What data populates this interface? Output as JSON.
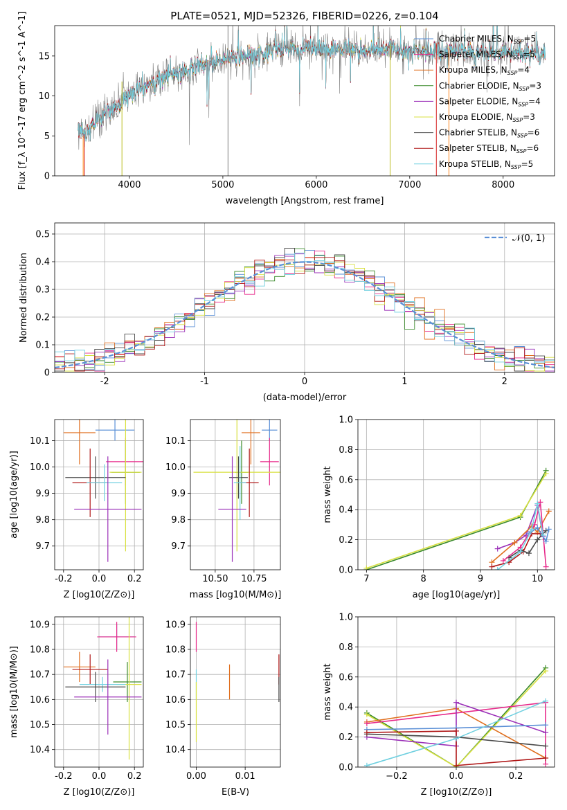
{
  "chart_data": [
    {
      "id": "spectrum",
      "type": "line",
      "title": "PLATE=0521, MJD=52326, FIBERID=0226, z=0.104",
      "xlabel": "wavelength [Angstrom, rest frame]",
      "ylabel": "Flux [f_λ 10^-17 erg cm^-2 s^-1 A^-1]",
      "xlim": [
        3200,
        8550
      ],
      "ylim": [
        0,
        18.8
      ],
      "xticks": [
        4000,
        5000,
        6000,
        7000,
        8000
      ],
      "yticks": [
        0,
        5,
        10,
        15
      ],
      "grid": false,
      "legend_position": "right",
      "continuum": {
        "x": [
          3450,
          3550,
          3650,
          3750,
          3850,
          3950,
          4050,
          4150,
          4300,
          4500,
          4700,
          4900,
          5100,
          5300,
          5500,
          5800,
          6100,
          6400,
          6700,
          7000,
          7300,
          7600,
          7900,
          8200,
          8450
        ],
        "y": [
          5.2,
          5.6,
          6.8,
          8.0,
          8.8,
          9.6,
          10.5,
          11.2,
          12.0,
          12.8,
          13.6,
          14.2,
          14.8,
          15.2,
          15.6,
          16.0,
          15.9,
          15.8,
          15.9,
          15.8,
          15.5,
          15.6,
          15.5,
          15.4,
          15.3
        ]
      },
      "spikes": [
        {
          "x": 3920,
          "y0": 0,
          "y1": 11.8,
          "color": "#bcbd22"
        },
        {
          "x": 5055,
          "y0": 0,
          "y1": 18.8,
          "color": "#7f7f7f"
        },
        {
          "x": 6790,
          "y0": 0,
          "y1": 16.5,
          "color": "#bcbd22"
        },
        {
          "x": 7285,
          "y0": 0,
          "y1": 16.6,
          "color": "#d62728"
        },
        {
          "x": 7420,
          "y0": 0,
          "y1": 16.4,
          "color": "#ff7f0e"
        },
        {
          "x": 3505,
          "y0": 0,
          "y1": 5.0,
          "color": "#ff7f0e"
        },
        {
          "x": 3520,
          "y0": 0,
          "y1": 5.2,
          "color": "#d62728"
        }
      ],
      "series": [
        {
          "name": "Chabrier MILES, N_SSP=5",
          "color": "#5a8fd6"
        },
        {
          "name": "Salpeter MILES, N_SSP=5",
          "color": "#e7298a"
        },
        {
          "name": "Kroupa MILES, N_SSP=4",
          "color": "#e07020"
        },
        {
          "name": "Chabrier ELODIE, N_SSP=3",
          "color": "#3a8a2a"
        },
        {
          "name": "Salpeter ELODIE, N_SSP=4",
          "color": "#9b30b8"
        },
        {
          "name": "Kroupa ELODIE, N_SSP=3",
          "color": "#d8e040"
        },
        {
          "name": "Chabrier STELIB, N_SSP=6",
          "color": "#4a4a4a"
        },
        {
          "name": "Salpeter STELIB, N_SSP=6",
          "color": "#b01818"
        },
        {
          "name": "Kroupa STELIB, N_SSP=5",
          "color": "#70d0e0"
        }
      ]
    },
    {
      "id": "residuals",
      "type": "line",
      "xlabel": "(data-model)/error",
      "ylabel": "Normed distribution",
      "xlim": [
        -2.5,
        2.5
      ],
      "ylim": [
        0,
        0.54
      ],
      "xticks": [
        -2,
        -1,
        0,
        1,
        2
      ],
      "yticks": [
        0.0,
        0.1,
        0.2,
        0.3,
        0.4,
        0.5
      ],
      "grid": true,
      "legend_position": "top-right",
      "gaussian": {
        "name": "𝒩(0, 1)",
        "mu": 0,
        "sigma": 1,
        "color": "#5a8fd6"
      },
      "bin_width": 0.1,
      "series_colors": [
        "#5a8fd6",
        "#e7298a",
        "#e07020",
        "#3a8a2a",
        "#9b30b8",
        "#d8e040",
        "#4a4a4a",
        "#b01818",
        "#70d0e0"
      ]
    },
    {
      "id": "age-vs-z",
      "type": "scatter",
      "xlabel": "Z [log10(Z/Z⊙)]",
      "ylabel": "age  [log10(age/yr)]",
      "xlim": [
        -0.25,
        0.25
      ],
      "ylim": [
        9.61,
        10.18
      ],
      "xticks": [
        "-0.2",
        "0.0",
        "0.2"
      ],
      "yticks": [
        "9.7",
        "9.8",
        "9.9",
        "10.0",
        "10.1"
      ],
      "grid": true,
      "points": [
        {
          "x": 0.09,
          "y": 10.14,
          "xerr": 0.11,
          "yerr": 0.04,
          "color": "#5a8fd6"
        },
        {
          "x": -0.11,
          "y": 10.13,
          "xerr": 0.09,
          "yerr": 0.12,
          "color": "#e07020"
        },
        {
          "x": 0.15,
          "y": 10.02,
          "xerr": 0.11,
          "yerr": 0.09,
          "color": "#e7298a"
        },
        {
          "x": 0.15,
          "y": 9.98,
          "xerr": 0.08,
          "yerr": 0.12,
          "color": "#3a8a2a"
        },
        {
          "x": 0.15,
          "y": 9.98,
          "xerr": 0.09,
          "yerr": 0.3,
          "color": "#d8e040"
        },
        {
          "x": -0.02,
          "y": 9.96,
          "xerr": 0.17,
          "yerr": 0.08,
          "color": "#4a4a4a"
        },
        {
          "x": -0.05,
          "y": 9.94,
          "xerr": 0.1,
          "yerr": 0.13,
          "color": "#b01818"
        },
        {
          "x": 0.03,
          "y": 9.94,
          "xerr": 0.1,
          "yerr": 0.07,
          "color": "#70d0e0"
        },
        {
          "x": 0.05,
          "y": 9.84,
          "xerr": 0.19,
          "yerr": 0.2,
          "color": "#9b30b8"
        }
      ]
    },
    {
      "id": "age-vs-mass",
      "type": "scatter",
      "xlabel": "mass [log10(M/M⊙)]",
      "xlim": [
        10.34,
        10.92
      ],
      "ylim": [
        9.61,
        10.18
      ],
      "xticks": [
        "10.50",
        "10.75"
      ],
      "yticks": [
        "9.7",
        "9.8",
        "9.9",
        "10.0",
        "10.1"
      ],
      "grid": true,
      "points": [
        {
          "x": 10.85,
          "y": 10.14,
          "xerr": 0.05,
          "yerr": 0.04,
          "color": "#5a8fd6"
        },
        {
          "x": 10.73,
          "y": 10.13,
          "xerr": 0.06,
          "yerr": 0.12,
          "color": "#e07020"
        },
        {
          "x": 10.85,
          "y": 10.02,
          "xerr": 0.06,
          "yerr": 0.09,
          "color": "#e7298a"
        },
        {
          "x": 10.67,
          "y": 9.98,
          "xerr": 0.04,
          "yerr": 0.12,
          "color": "#3a8a2a"
        },
        {
          "x": 10.64,
          "y": 9.98,
          "xerr": 0.28,
          "yerr": 0.3,
          "color": "#d8e040"
        },
        {
          "x": 10.65,
          "y": 9.96,
          "xerr": 0.06,
          "yerr": 0.08,
          "color": "#4a4a4a"
        },
        {
          "x": 10.72,
          "y": 9.94,
          "xerr": 0.06,
          "yerr": 0.13,
          "color": "#b01818"
        },
        {
          "x": 10.66,
          "y": 9.94,
          "xerr": 0.04,
          "yerr": 0.14,
          "color": "#70d0e0"
        },
        {
          "x": 10.61,
          "y": 9.84,
          "xerr": 0.09,
          "yerr": 0.2,
          "color": "#9b30b8"
        }
      ]
    },
    {
      "id": "mass-weight-vs-age",
      "type": "line",
      "xlabel": "age  [log10(age/yr)]",
      "ylabel": "mass weight",
      "xlim": [
        6.85,
        10.3
      ],
      "ylim": [
        0,
        1.0
      ],
      "xticks": [
        "7",
        "8",
        "9",
        "10"
      ],
      "yticks": [
        "0.0",
        "0.2",
        "0.4",
        "0.6",
        "0.8",
        "1.0"
      ],
      "grid": true,
      "series": [
        {
          "color": "#3a8a2a",
          "x": [
            7.0,
            9.7,
            10.15
          ],
          "y": [
            0.0,
            0.35,
            0.66
          ]
        },
        {
          "color": "#d8e040",
          "x": [
            7.0,
            9.7,
            10.15
          ],
          "y": [
            0.01,
            0.36,
            0.64
          ]
        },
        {
          "color": "#9b30b8",
          "x": [
            9.3,
            9.6,
            9.8,
            10.0,
            10.1
          ],
          "y": [
            0.14,
            0.18,
            0.23,
            0.43,
            0.22
          ]
        },
        {
          "color": "#e07020",
          "x": [
            9.2,
            9.6,
            9.9,
            10.0,
            10.2
          ],
          "y": [
            0.05,
            0.18,
            0.29,
            0.25,
            0.39
          ]
        },
        {
          "color": "#b01818",
          "x": [
            9.2,
            9.5,
            9.75,
            9.9,
            10.05
          ],
          "y": [
            0.02,
            0.05,
            0.12,
            0.24,
            0.24
          ]
        },
        {
          "color": "#4a4a4a",
          "x": [
            9.5,
            9.7,
            9.85,
            10.0,
            10.15
          ],
          "y": [
            0.08,
            0.13,
            0.11,
            0.2,
            0.26
          ]
        },
        {
          "color": "#e7298a",
          "x": [
            9.4,
            9.7,
            9.95,
            10.05,
            10.15
          ],
          "y": [
            0.06,
            0.15,
            0.3,
            0.45,
            0.02
          ]
        },
        {
          "color": "#5a8fd6",
          "x": [
            9.85,
            10.0,
            10.15,
            10.2
          ],
          "y": [
            0.24,
            0.28,
            0.19,
            0.27
          ]
        },
        {
          "color": "#70d0e0",
          "x": [
            9.3,
            9.7,
            9.9,
            10.0,
            10.1
          ],
          "y": [
            0.0,
            0.12,
            0.27,
            0.44,
            0.23
          ]
        }
      ]
    },
    {
      "id": "mass-vs-z",
      "type": "scatter",
      "xlabel": "Z [log10(Z/Z⊙)]",
      "ylabel": "mass [log10(M/M⊙)]",
      "xlim": [
        -0.25,
        0.25
      ],
      "ylim": [
        10.33,
        10.93
      ],
      "xticks": [
        "-0.2",
        "0.0",
        "0.2"
      ],
      "yticks": [
        "10.4",
        "10.5",
        "10.6",
        "10.7",
        "10.8",
        "10.9"
      ],
      "grid": true,
      "points": [
        {
          "x": 0.1,
          "y": 10.85,
          "xerr": 0.1,
          "yerr": 0.05,
          "color": "#5a8fd6"
        },
        {
          "x": 0.1,
          "y": 10.85,
          "xerr": 0.11,
          "yerr": 0.06,
          "color": "#e7298a"
        },
        {
          "x": -0.11,
          "y": 10.73,
          "xerr": 0.09,
          "yerr": 0.06,
          "color": "#e07020"
        },
        {
          "x": -0.05,
          "y": 10.72,
          "xerr": 0.1,
          "yerr": 0.06,
          "color": "#b01818"
        },
        {
          "x": 0.16,
          "y": 10.67,
          "xerr": 0.08,
          "yerr": 0.08,
          "color": "#3a8a2a"
        },
        {
          "x": 0.17,
          "y": 10.66,
          "xerr": 0.07,
          "yerr": 0.3,
          "color": "#d8e040"
        },
        {
          "x": 0.02,
          "y": 10.66,
          "xerr": 0.13,
          "yerr": 0.03,
          "color": "#70d0e0"
        },
        {
          "x": -0.02,
          "y": 10.65,
          "xerr": 0.17,
          "yerr": 0.06,
          "color": "#4a4a4a"
        },
        {
          "x": 0.05,
          "y": 10.61,
          "xerr": 0.19,
          "yerr": 0.15,
          "color": "#9b30b8"
        }
      ]
    },
    {
      "id": "mass-vs-ebv",
      "type": "scatter",
      "xlabel": "E(B-V)",
      "xlim": [
        -0.0012,
        0.0172
      ],
      "ylim": [
        10.33,
        10.93
      ],
      "xticks": [
        "0.00",
        "0.01"
      ],
      "yticks": [
        "10.4",
        "10.5",
        "10.6",
        "10.7",
        "10.8",
        "10.9"
      ],
      "grid": true,
      "points": [
        {
          "x": 0.0,
          "y": 10.85,
          "xerr": 0,
          "yerr": 0.06,
          "color": "#e7298a"
        },
        {
          "x": 0.0,
          "y": 10.66,
          "xerr": 0,
          "yerr": 0.06,
          "color": "#70d0e0"
        },
        {
          "x": 0.0,
          "y": 10.55,
          "xerr": 0,
          "yerr": 0.12,
          "color": "#d8e040"
        },
        {
          "x": 0.0068,
          "y": 10.67,
          "xerr": 0,
          "yerr": 0.07,
          "color": "#e07020"
        },
        {
          "x": 0.0169,
          "y": 10.72,
          "xerr": 0,
          "yerr": 0.06,
          "color": "#b01818"
        },
        {
          "x": 0.0169,
          "y": 10.64,
          "xerr": 0,
          "yerr": 0.05,
          "color": "#4a4a4a"
        }
      ]
    },
    {
      "id": "mass-weight-vs-z",
      "type": "line",
      "xlabel": "Z [log10(Z/Z⊙)]",
      "ylabel": "mass weight",
      "xlim": [
        -0.33,
        0.33
      ],
      "ylim": [
        0,
        1.0
      ],
      "xticks": [
        "−0.2",
        "0.0",
        "0.2"
      ],
      "yticks": [
        "0.0",
        "0.2",
        "0.4",
        "0.6",
        "0.8",
        "1.0"
      ],
      "grid": true,
      "series": [
        {
          "color": "#3a8a2a",
          "x": [
            -0.3,
            0.0,
            0.3
          ],
          "y": [
            0.36,
            0.0,
            0.66
          ]
        },
        {
          "color": "#d8e040",
          "x": [
            -0.3,
            0.0,
            0.3
          ],
          "y": [
            0.35,
            0.0,
            0.64
          ]
        },
        {
          "color": "#e07020",
          "x": [
            -0.3,
            0.0,
            0.3
          ],
          "y": [
            0.3,
            0.39,
            0.06
          ]
        },
        {
          "color": "#e7298a",
          "x": [
            -0.3,
            0.3,
            0.3
          ],
          "y": [
            0.29,
            0.43,
            0.02
          ]
        },
        {
          "color": "#9b30b8",
          "x": [
            -0.3,
            0.0,
            0.0,
            0.3
          ],
          "y": [
            0.2,
            0.14,
            0.43,
            0.23
          ]
        },
        {
          "color": "#5a8fd6",
          "x": [
            -0.3,
            0.0,
            0.3
          ],
          "y": [
            0.25,
            0.26,
            0.28
          ]
        },
        {
          "color": "#4a4a4a",
          "x": [
            -0.3,
            0.0,
            0.3
          ],
          "y": [
            0.22,
            0.2,
            0.14
          ]
        },
        {
          "color": "#b01818",
          "x": [
            -0.3,
            0.0,
            0.0,
            0.3
          ],
          "y": [
            0.23,
            0.24,
            0.01,
            0.06
          ]
        },
        {
          "color": "#70d0e0",
          "x": [
            -0.3,
            0.0,
            0.3
          ],
          "y": [
            0.01,
            0.19,
            0.44
          ]
        }
      ]
    }
  ]
}
